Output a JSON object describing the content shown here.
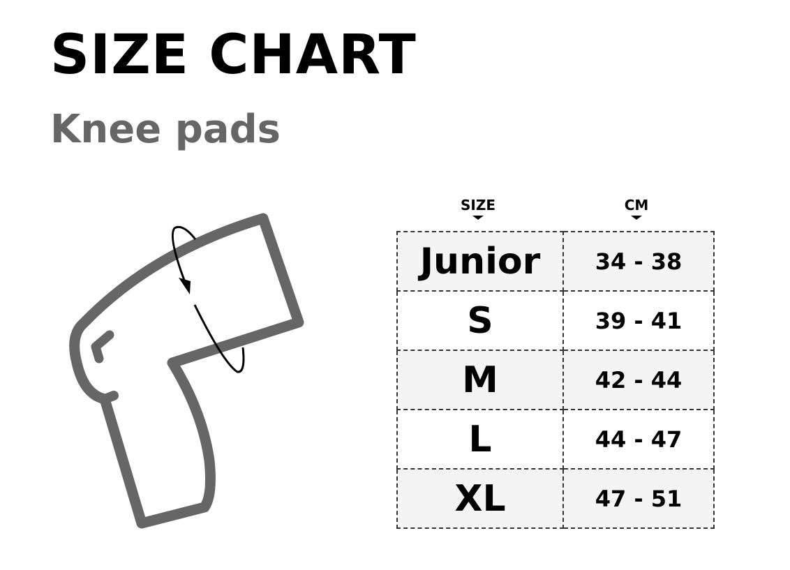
{
  "chart_data": {
    "type": "table",
    "title": "SIZE CHART",
    "subtitle": "Knee pads",
    "columns": [
      "SIZE",
      "CM"
    ],
    "rows": [
      {
        "size": "Junior",
        "cm": "34 - 38"
      },
      {
        "size": "S",
        "cm": "39 - 41"
      },
      {
        "size": "M",
        "cm": "42 - 44"
      },
      {
        "size": "L",
        "cm": "44 - 47"
      },
      {
        "size": "XL",
        "cm": "47 - 51"
      }
    ]
  },
  "colors": {
    "outline": "#666666",
    "shade": "#f4f4f4",
    "text": "#000000"
  }
}
